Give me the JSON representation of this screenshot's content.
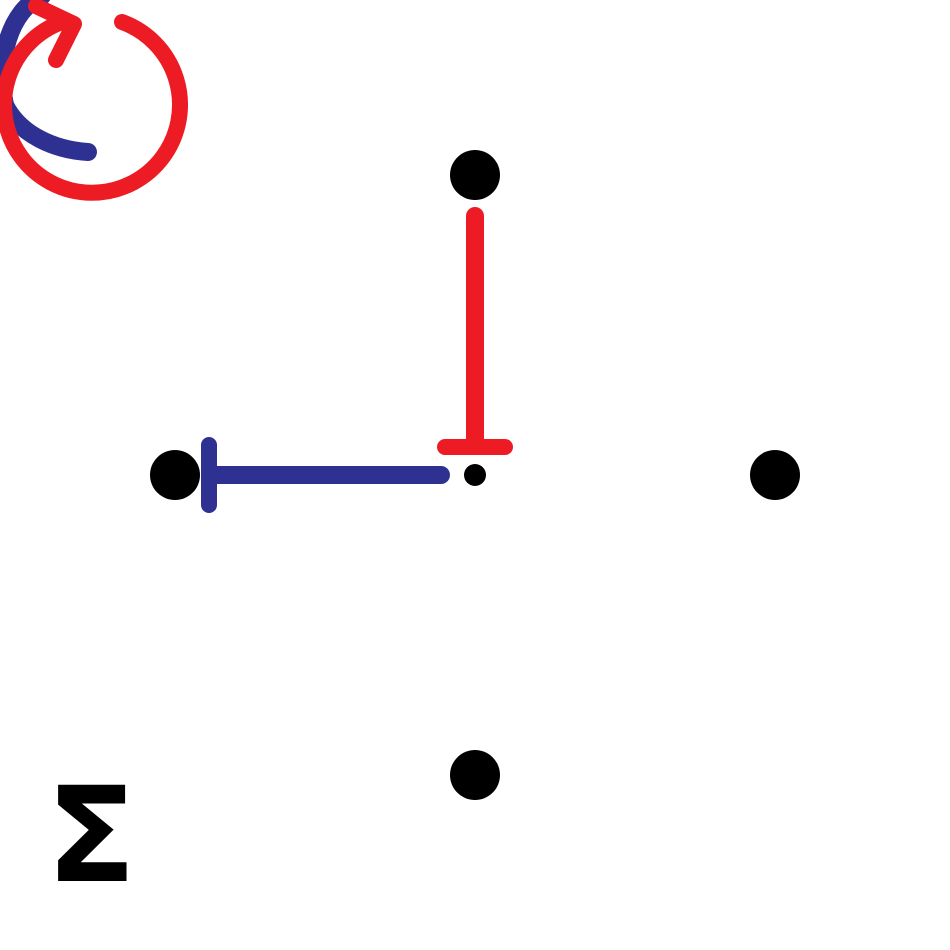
{
  "diagram": {
    "symbol": "Σ",
    "colors": {
      "background": "#ffffff",
      "point": "#000000",
      "red": "#ed1c24",
      "blue": "#2e3192"
    },
    "icons": {
      "rotation": "rotate-cw-icon",
      "vertical_arrow": "red-t-bar-arrow",
      "horizontal_arrow": "blue-t-bar-arrow"
    }
  }
}
